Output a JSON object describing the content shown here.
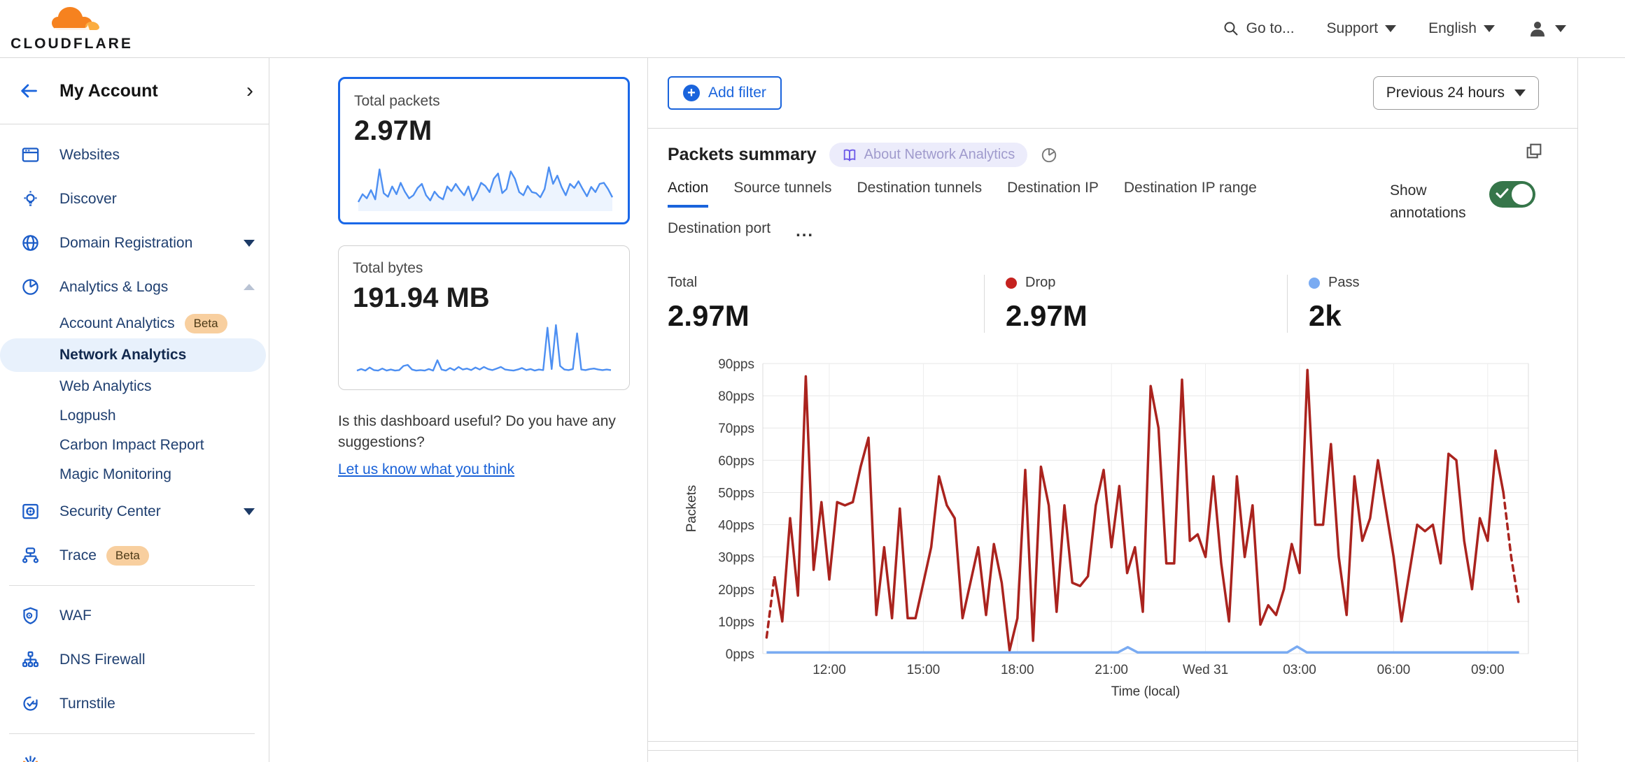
{
  "topbar": {
    "brand": "CLOUDFLARE",
    "goto_label": "Go to...",
    "support_label": "Support",
    "language_label": "English"
  },
  "sidebar": {
    "account_header": "My Account",
    "websites": "Websites",
    "discover": "Discover",
    "domain_registration": "Domain Registration",
    "analytics_logs": "Analytics & Logs",
    "account_analytics": "Account Analytics",
    "account_analytics_badge": "Beta",
    "network_analytics": "Network Analytics",
    "web_analytics": "Web Analytics",
    "logpush": "Logpush",
    "carbon_impact": "Carbon Impact Report",
    "magic_monitoring": "Magic Monitoring",
    "security_center": "Security Center",
    "trace": "Trace",
    "trace_badge": "Beta",
    "waf": "WAF",
    "dns_firewall": "DNS Firewall",
    "turnstile": "Turnstile"
  },
  "cards": {
    "packets_title": "Total packets",
    "packets_value": "2.97M",
    "bytes_title": "Total bytes",
    "bytes_value": "191.94 MB",
    "packets_spark": [
      15,
      30,
      22,
      38,
      20,
      78,
      32,
      25,
      45,
      30,
      52,
      35,
      22,
      28,
      42,
      50,
      28,
      18,
      35,
      25,
      20,
      45,
      36,
      50,
      38,
      28,
      45,
      18,
      32,
      52,
      46,
      34,
      60,
      70,
      32,
      40,
      74,
      60,
      34,
      28,
      46,
      34,
      32,
      24,
      40,
      82,
      50,
      66,
      44,
      28,
      50,
      42,
      55,
      40,
      26,
      44,
      34,
      50,
      52,
      40,
      24
    ],
    "bytes_spark": [
      12,
      15,
      12,
      18,
      13,
      12,
      16,
      12,
      14,
      12,
      13,
      21,
      23,
      14,
      12,
      13,
      12,
      15,
      12,
      32,
      14,
      12,
      17,
      13,
      19,
      14,
      16,
      13,
      18,
      14,
      19,
      15,
      13,
      16,
      19,
      14,
      13,
      12,
      14,
      17,
      13,
      15,
      12,
      14,
      13,
      95,
      15,
      100,
      21,
      14,
      13,
      15,
      84,
      14,
      13,
      15,
      16,
      14,
      13,
      14,
      13
    ]
  },
  "feedback": {
    "text": "Is this dashboard useful? Do you have any suggestions?",
    "link": "Let us know what you think"
  },
  "toolbar": {
    "add_filter": "Add filter",
    "time_range": "Previous 24 hours"
  },
  "summary": {
    "title": "Packets summary",
    "about_badge": "About Network Analytics",
    "tabs": {
      "t0": "Action",
      "t1": "Source tunnels",
      "t2": "Destination tunnels",
      "t3": "Destination IP",
      "t4": "Destination IP range",
      "t5": "Destination port",
      "more": "..."
    },
    "active_tab": "Action",
    "show_annotations": "Show annotations",
    "annotations_on": true,
    "stat_total_label": "Total",
    "stat_total_value": "2.97M",
    "stat_drop_label": "Drop",
    "stat_drop_value": "2.97M",
    "stat_pass_label": "Pass",
    "stat_pass_value": "2k"
  },
  "colors": {
    "accent_blue": "#1a64dc",
    "selected_card_border": "#1a68e8",
    "spark_blue": "#4d8ff2",
    "drop_line": "#aa231e",
    "drop_dot": "#c5221f",
    "pass_blue": "#7aabf2",
    "toggle_green": "#36764a",
    "brand_orange": "#f6821f",
    "brand_orange_light": "#fbad41",
    "active_item_bg": "#e8f1fc",
    "beta_badge_bg": "#f8cf9f"
  },
  "chart_data": {
    "type": "line",
    "title": "Packets summary",
    "xlabel": "Time (local)",
    "ylabel": "Packets",
    "ylim": [
      0,
      90
    ],
    "y_unit": "pps",
    "y_ticks": [
      "0pps",
      "10pps",
      "20pps",
      "30pps",
      "40pps",
      "50pps",
      "60pps",
      "70pps",
      "80pps",
      "90pps"
    ],
    "x_ticks": [
      "12:00",
      "15:00",
      "18:00",
      "21:00",
      "Wed 31",
      "03:00",
      "06:00",
      "09:00"
    ],
    "x_tick_interval_hours": 3,
    "grid": true,
    "legend": [
      "Total",
      "Drop",
      "Pass"
    ],
    "series": [
      {
        "name": "Drop",
        "color": "#aa231e",
        "start_time": "10:00",
        "step_minutes": 15,
        "dashed_head_segments": 1,
        "dashed_tail_segments": 2,
        "values": [
          5,
          24,
          10,
          42,
          18,
          86,
          26,
          47,
          23,
          47,
          46,
          47,
          58,
          67,
          12,
          33,
          11,
          45,
          11,
          11,
          22,
          33,
          55,
          46,
          42,
          11,
          22,
          33,
          12,
          34,
          22,
          1,
          11,
          57,
          4,
          58,
          46,
          13,
          46,
          22,
          21,
          24,
          46,
          57,
          33,
          52,
          25,
          33,
          13,
          83,
          70,
          28,
          28,
          85,
          35,
          37,
          30,
          55,
          28,
          10,
          55,
          30,
          46,
          9,
          15,
          12,
          20,
          34,
          25,
          88,
          40,
          40,
          65,
          30,
          12,
          55,
          35,
          42,
          60,
          45,
          30,
          10,
          25,
          40,
          38,
          40,
          28,
          62,
          60,
          35,
          20,
          42,
          35,
          63,
          50,
          30,
          15
        ]
      },
      {
        "name": "Pass",
        "color": "#7aabf2",
        "baseline": 0.4,
        "bumps": [
          {
            "frac": 0.48,
            "peak": 2.0
          },
          {
            "frac": 0.705,
            "peak": 2.2
          }
        ]
      }
    ]
  }
}
